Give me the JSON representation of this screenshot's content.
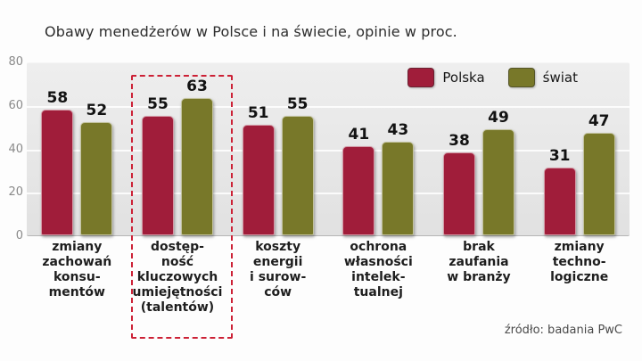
{
  "title": "Obawy menedżerów w Polsce i na świecie, opinie w proc.",
  "source": "źródło: badania PwC",
  "legend": {
    "polska": "Polska",
    "swiat": "świat"
  },
  "colors": {
    "polska": "#a01d3a",
    "swiat": "#787829",
    "highlight_box": "#cc2136",
    "plot_background": "#e6e6e6"
  },
  "chart_data": {
    "type": "bar",
    "title": "Obawy menedżerów w Polsce i na świecie, opinie w proc.",
    "categories": [
      "zmiany zachowań konsumentów",
      "dostępność kluczowych umiejętności (talentów)",
      "koszty energii i surowców",
      "ochrona własności intelektualnej",
      "brak zaufania w branży",
      "zmiany technologiczne"
    ],
    "category_lines": [
      [
        "zmiany",
        "zachowań",
        "konsu-",
        "mentów"
      ],
      [
        "dostęp-",
        "ność",
        "kluczowych",
        "umiejętności",
        "(talentów)"
      ],
      [
        "koszty",
        "energii",
        "i surow-",
        "ców"
      ],
      [
        "ochrona",
        "własności",
        "intelek-",
        "tualnej"
      ],
      [
        "brak",
        "zaufania",
        "w branży"
      ],
      [
        "zmiany",
        "techno-",
        "logiczne"
      ]
    ],
    "series": [
      {
        "name": "Polska",
        "values": [
          58,
          55,
          51,
          41,
          38,
          31
        ]
      },
      {
        "name": "świat",
        "values": [
          52,
          63,
          55,
          43,
          49,
          47
        ]
      }
    ],
    "ylim": [
      0,
      80
    ],
    "yticks": [
      0,
      20,
      40,
      60,
      80
    ],
    "xlabel": "",
    "ylabel": "",
    "grid": true,
    "legend_position": "top-right",
    "highlighted_category_index": 1
  }
}
